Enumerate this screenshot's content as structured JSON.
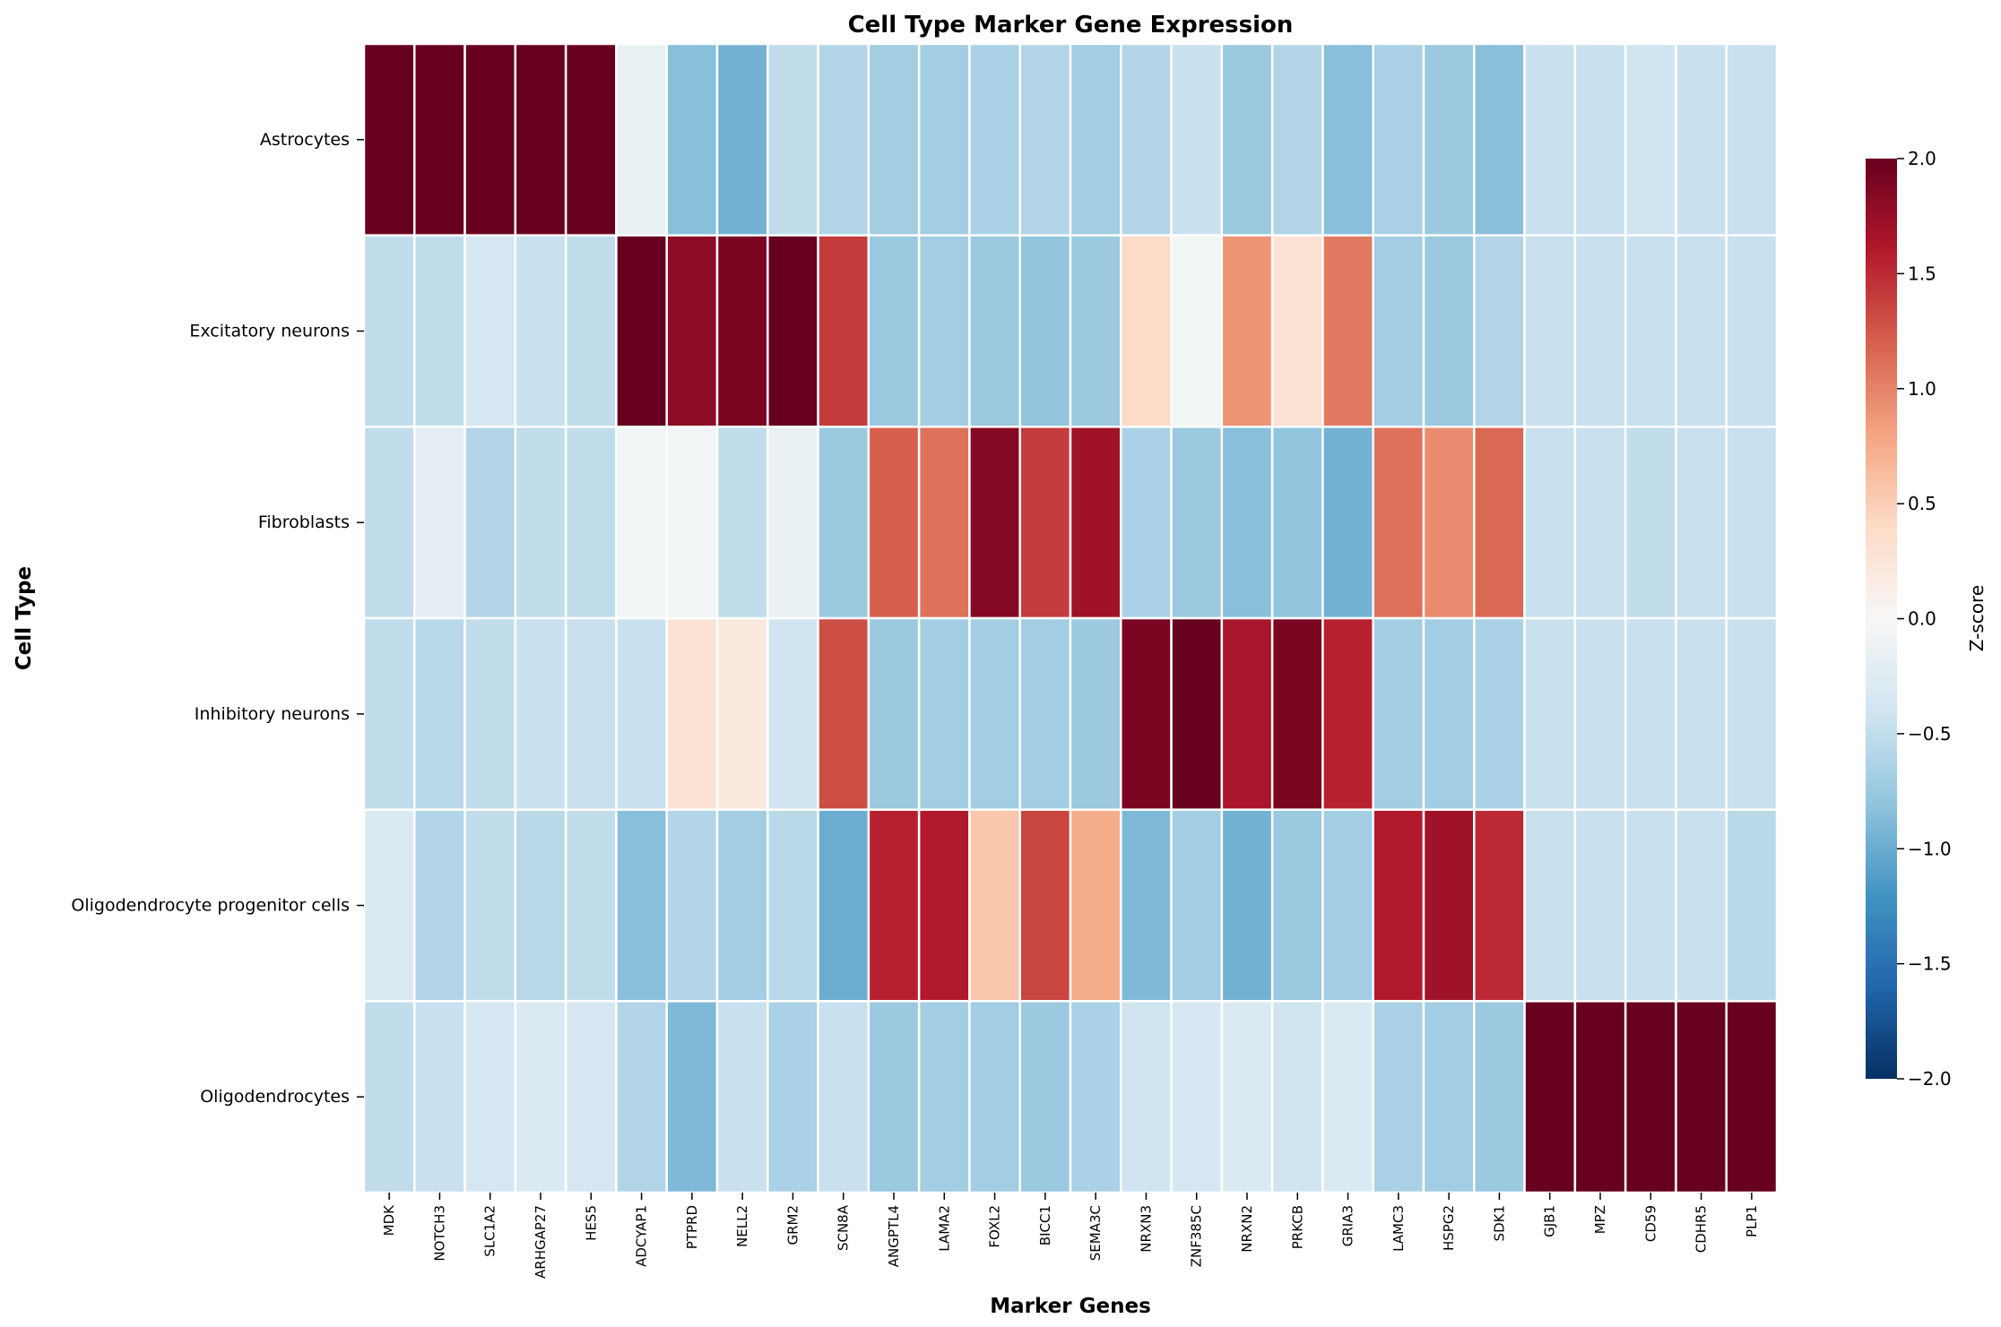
{
  "chart_data": {
    "type": "heatmap",
    "title": "Cell Type Marker Gene Expression",
    "xlabel": "Marker Genes",
    "ylabel": "Cell Type",
    "colorbar_label": "Z-score",
    "colormap": "RdBu_r",
    "vmin": -2,
    "vmax": 2,
    "colorbar_ticks": [
      "2.0",
      "1.5",
      "1.0",
      "0.5",
      "0.0",
      "−0.5",
      "−1.0",
      "−1.5",
      "−2.0"
    ],
    "colorbar_tick_values": [
      2.0,
      1.5,
      1.0,
      0.5,
      0.0,
      -0.5,
      -1.0,
      -1.5,
      -2.0
    ],
    "rows": [
      "Astrocytes",
      "Excitatory neurons",
      "Fibroblasts",
      "Inhibitory neurons",
      "Oligodendrocyte progenitor cells",
      "Oligodendrocytes"
    ],
    "columns": [
      "MDK",
      "NOTCH3",
      "SLC1A2",
      "ARHGAP27",
      "HES5",
      "ADCYAP1",
      "PTPRD",
      "NELL2",
      "GRM2",
      "SCN8A",
      "ANGPTL4",
      "LAMA2",
      "FOXL2",
      "BICC1",
      "SEMA3C",
      "NRXN3",
      "ZNF385C",
      "NRXN2",
      "PRKCB",
      "GRIA3",
      "LAMC3",
      "HSPG2",
      "SDK1",
      "GJB1",
      "MPZ",
      "CD59",
      "CDHR5",
      "PLP1"
    ],
    "values": [
      [
        2.0,
        2.0,
        2.0,
        2.0,
        2.0,
        -0.15,
        -0.85,
        -0.95,
        -0.5,
        -0.6,
        -0.7,
        -0.7,
        -0.65,
        -0.6,
        -0.7,
        -0.6,
        -0.45,
        -0.75,
        -0.6,
        -0.85,
        -0.65,
        -0.75,
        -0.85,
        -0.45,
        -0.45,
        -0.4,
        -0.45,
        -0.45
      ],
      [
        -0.5,
        -0.5,
        -0.35,
        -0.45,
        -0.5,
        2.0,
        1.8,
        1.9,
        2.0,
        1.4,
        -0.75,
        -0.7,
        -0.75,
        -0.8,
        -0.75,
        0.4,
        -0.05,
        0.9,
        0.3,
        1.05,
        -0.7,
        -0.75,
        -0.6,
        -0.45,
        -0.45,
        -0.45,
        -0.45,
        -0.45
      ],
      [
        -0.5,
        -0.2,
        -0.6,
        -0.5,
        -0.5,
        -0.05,
        -0.05,
        -0.5,
        -0.15,
        -0.75,
        1.2,
        1.1,
        1.85,
        1.4,
        1.7,
        -0.65,
        -0.75,
        -0.85,
        -0.8,
        -0.95,
        1.1,
        0.95,
        1.15,
        -0.45,
        -0.45,
        -0.5,
        -0.45,
        -0.45
      ],
      [
        -0.5,
        -0.55,
        -0.5,
        -0.45,
        -0.45,
        -0.45,
        0.3,
        0.2,
        -0.4,
        1.3,
        -0.75,
        -0.7,
        -0.7,
        -0.7,
        -0.75,
        1.9,
        2.0,
        1.65,
        1.9,
        1.55,
        -0.7,
        -0.7,
        -0.65,
        -0.45,
        -0.45,
        -0.45,
        -0.45,
        -0.45
      ],
      [
        -0.3,
        -0.6,
        -0.5,
        -0.55,
        -0.5,
        -0.85,
        -0.6,
        -0.7,
        -0.55,
        -1.0,
        1.55,
        1.6,
        0.55,
        1.35,
        0.75,
        -0.9,
        -0.7,
        -0.95,
        -0.75,
        -0.7,
        1.6,
        1.7,
        1.5,
        -0.45,
        -0.45,
        -0.45,
        -0.45,
        -0.55
      ],
      [
        -0.5,
        -0.45,
        -0.35,
        -0.3,
        -0.35,
        -0.6,
        -0.9,
        -0.45,
        -0.65,
        -0.45,
        -0.75,
        -0.7,
        -0.7,
        -0.75,
        -0.65,
        -0.4,
        -0.35,
        -0.3,
        -0.4,
        -0.3,
        -0.65,
        -0.7,
        -0.75,
        2.0,
        2.0,
        2.0,
        2.0,
        2.0
      ]
    ]
  }
}
